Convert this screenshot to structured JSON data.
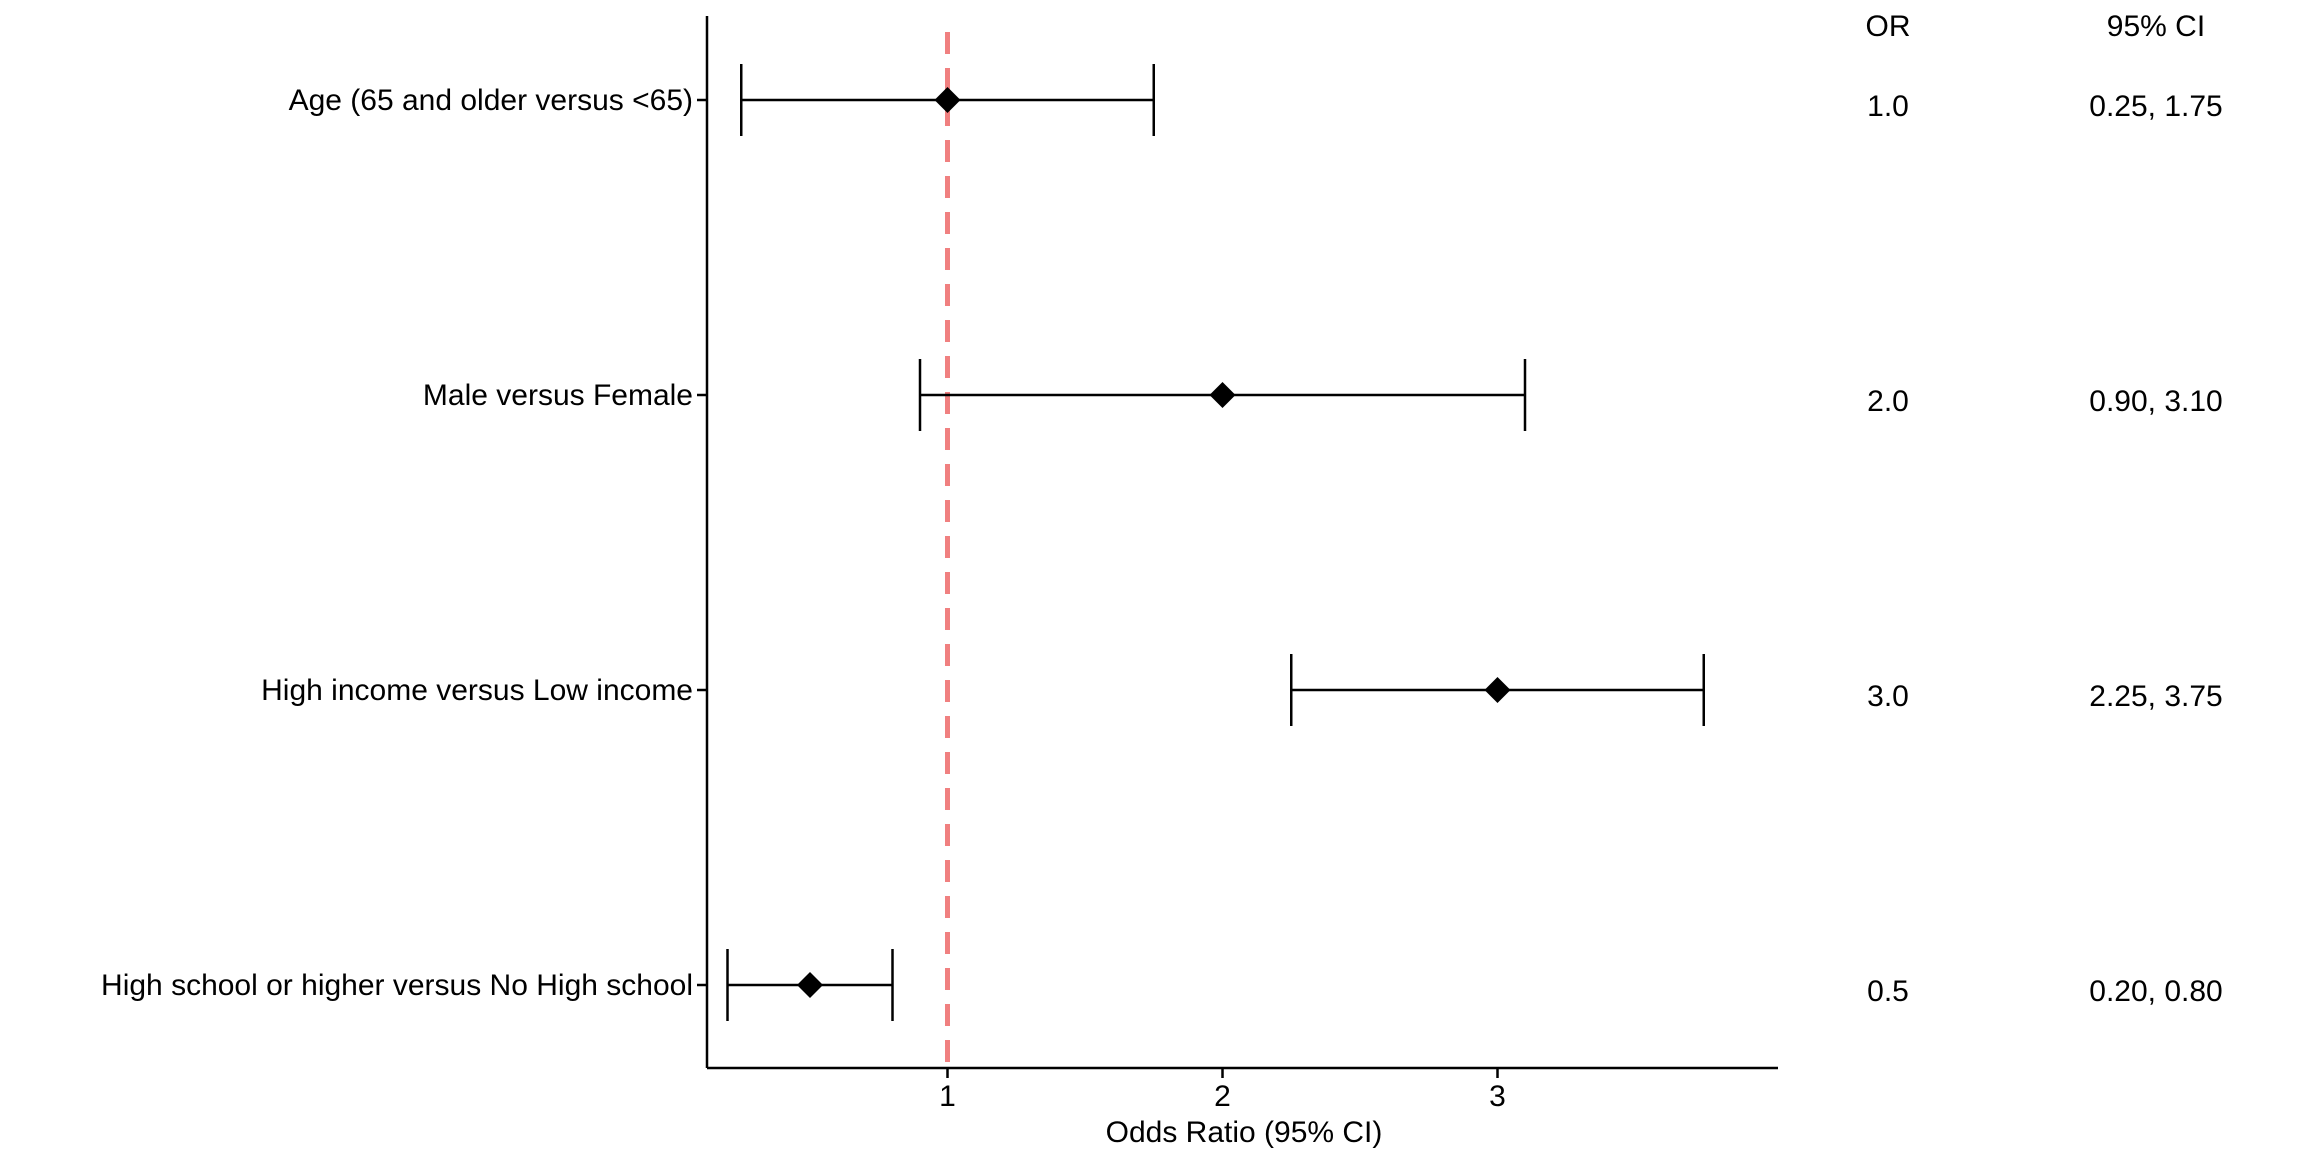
{
  "chart_data": {
    "type": "forest",
    "xlabel": "Odds Ratio (95% CI)",
    "xlim": [
      0.1,
      3.95
    ],
    "x_ticks": [
      1,
      2,
      3
    ],
    "reference_line": {
      "x": 1,
      "color": "#F08080",
      "style": "dashed"
    },
    "columns": {
      "or_header": "OR",
      "ci_header": "95% CI"
    },
    "rows": [
      {
        "label": "Age (65 and older versus <65)",
        "or": 1.0,
        "lower": 0.25,
        "upper": 1.75,
        "or_text": "1.0",
        "ci_text": "0.25, 1.75"
      },
      {
        "label": "Male versus Female",
        "or": 2.0,
        "lower": 0.9,
        "upper": 3.1,
        "or_text": "2.0",
        "ci_text": "0.90, 3.10"
      },
      {
        "label": "High income versus Low income",
        "or": 3.0,
        "lower": 2.25,
        "upper": 3.75,
        "or_text": "3.0",
        "ci_text": "2.25, 3.75"
      },
      {
        "label": "High school or higher versus No High school",
        "or": 0.5,
        "lower": 0.2,
        "upper": 0.8,
        "or_text": "0.5",
        "ci_text": "0.20, 0.80"
      }
    ],
    "marker_color": "#000000",
    "grid": false,
    "legend": "none"
  }
}
